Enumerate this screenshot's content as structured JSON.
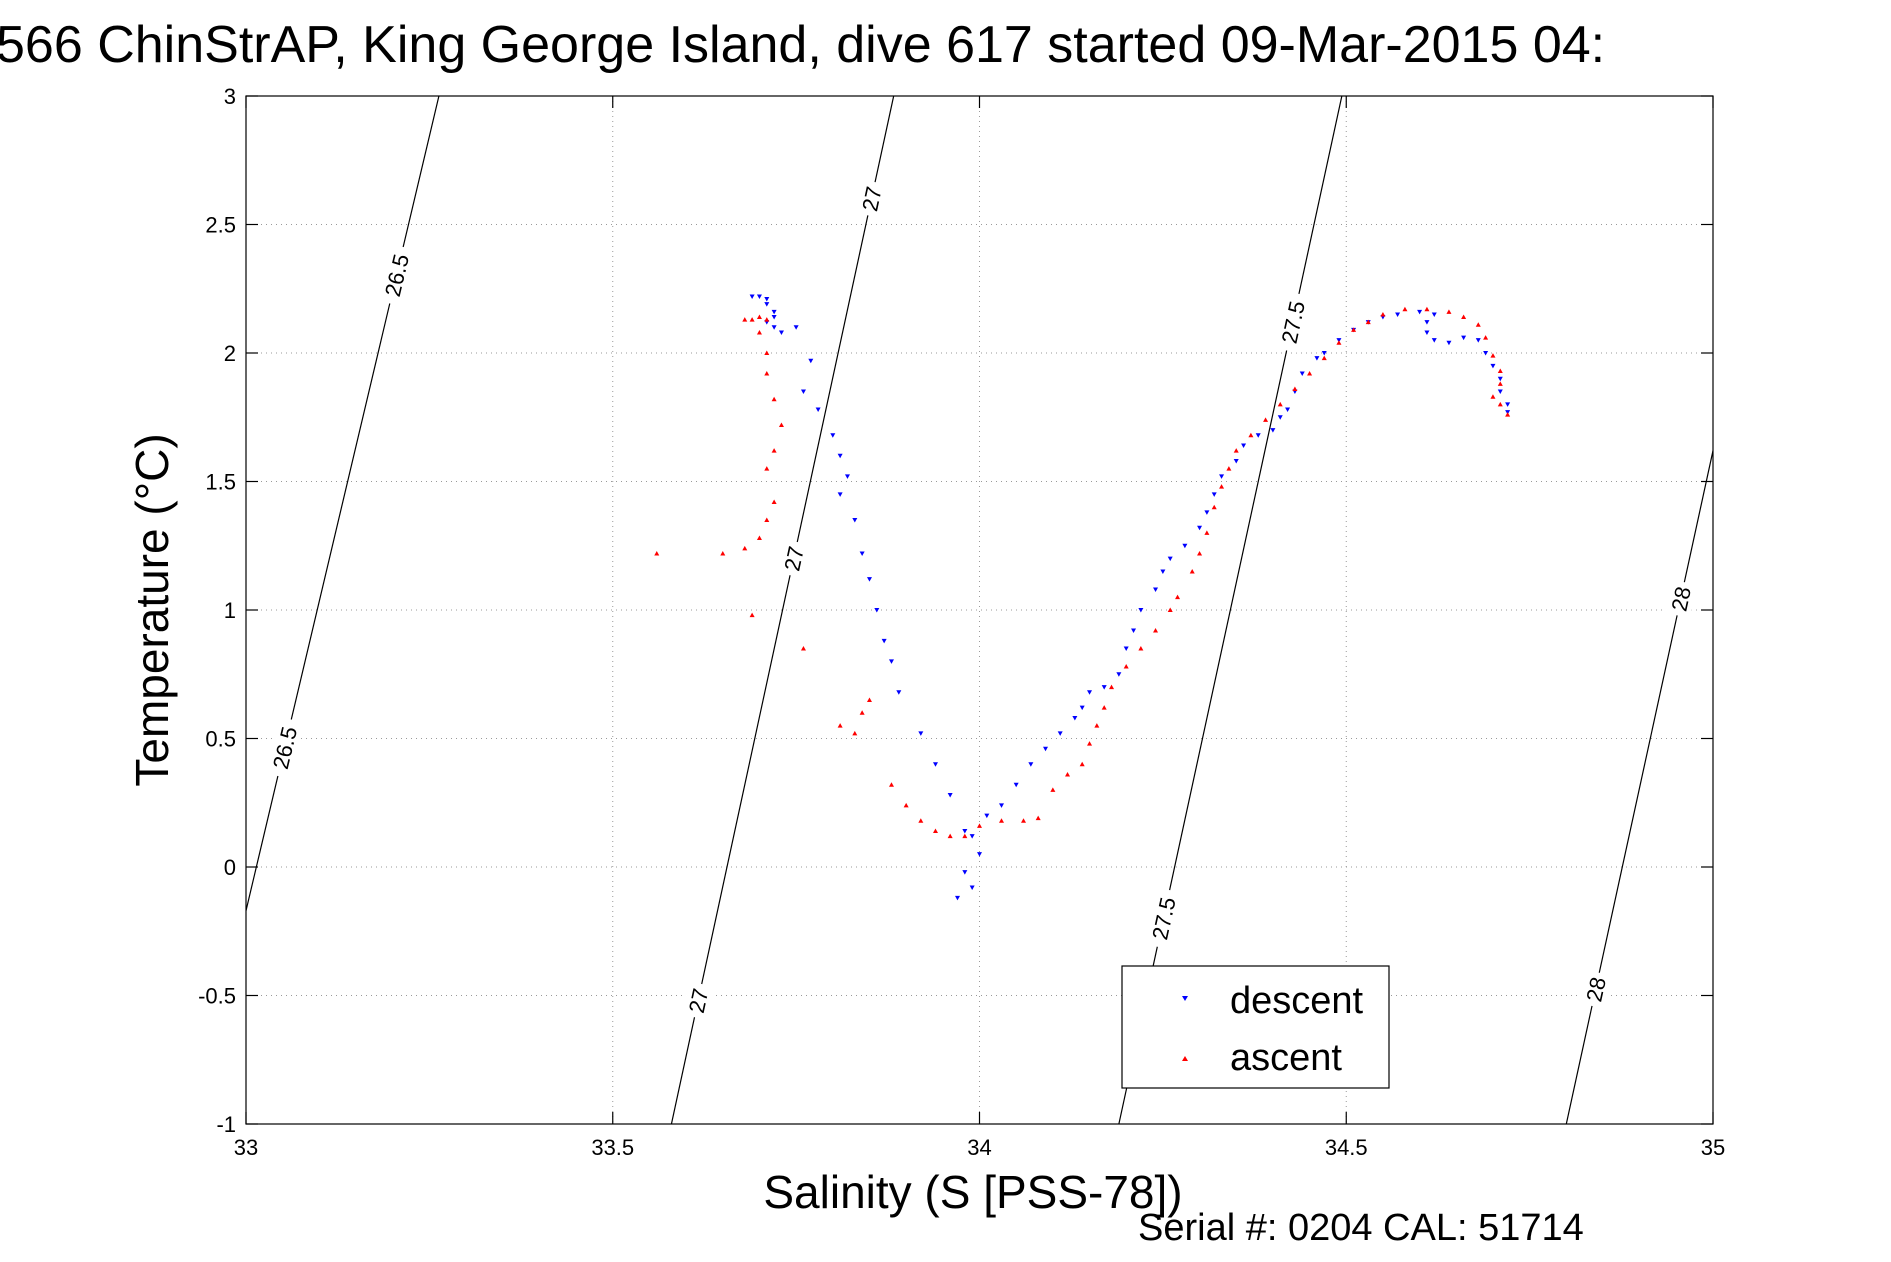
{
  "chart_data": {
    "type": "scatter",
    "title": "566 ChinStrAP, King George Island, dive 617 started 09-Mar-2015 04:",
    "xlabel": "Salinity (S [PSS-78])",
    "ylabel": "Temperature (°C)",
    "xlim": [
      33,
      35
    ],
    "ylim": [
      -1,
      3
    ],
    "x_ticks": [
      33,
      33.5,
      34,
      34.5,
      35
    ],
    "x_tick_labels": [
      "33",
      "33.5",
      "34",
      "34.5",
      "35"
    ],
    "y_ticks": [
      -1,
      -0.5,
      0,
      0.5,
      1,
      1.5,
      2,
      2.5,
      3
    ],
    "y_tick_labels": [
      "-1",
      "-0.5",
      "0",
      "0.5",
      "1",
      "1.5",
      "2",
      "2.5",
      "3"
    ],
    "grid": true,
    "legend_position": "bottom-right",
    "footer": "Serial #: 0204  CAL: 51714",
    "colors": {
      "descent": "#0000ff",
      "ascent": "#ff0000",
      "contour": "#000000"
    },
    "series": [
      {
        "name": "descent",
        "marker": "triangle-down",
        "color": "#0000ff",
        "points": [
          [
            33.69,
            2.22
          ],
          [
            33.7,
            2.22
          ],
          [
            33.71,
            2.21
          ],
          [
            33.71,
            2.19
          ],
          [
            33.72,
            2.16
          ],
          [
            33.72,
            2.14
          ],
          [
            33.71,
            2.12
          ],
          [
            33.72,
            2.1
          ],
          [
            33.73,
            2.08
          ],
          [
            33.75,
            2.1
          ],
          [
            33.77,
            1.97
          ],
          [
            33.76,
            1.85
          ],
          [
            33.78,
            1.78
          ],
          [
            33.8,
            1.68
          ],
          [
            33.81,
            1.6
          ],
          [
            33.82,
            1.52
          ],
          [
            33.81,
            1.45
          ],
          [
            33.83,
            1.35
          ],
          [
            33.84,
            1.22
          ],
          [
            33.85,
            1.12
          ],
          [
            33.86,
            1.0
          ],
          [
            33.87,
            0.88
          ],
          [
            33.88,
            0.8
          ],
          [
            33.89,
            0.68
          ],
          [
            33.92,
            0.52
          ],
          [
            33.94,
            0.4
          ],
          [
            33.96,
            0.28
          ],
          [
            33.98,
            0.14
          ],
          [
            33.99,
            0.12
          ],
          [
            34.0,
            0.05
          ],
          [
            33.98,
            -0.02
          ],
          [
            33.97,
            -0.12
          ],
          [
            33.99,
            -0.08
          ],
          [
            34.01,
            0.2
          ],
          [
            34.03,
            0.24
          ],
          [
            34.05,
            0.32
          ],
          [
            34.07,
            0.4
          ],
          [
            34.09,
            0.46
          ],
          [
            34.11,
            0.52
          ],
          [
            34.13,
            0.58
          ],
          [
            34.14,
            0.62
          ],
          [
            34.15,
            0.68
          ],
          [
            34.17,
            0.7
          ],
          [
            34.19,
            0.75
          ],
          [
            34.2,
            0.85
          ],
          [
            34.21,
            0.92
          ],
          [
            34.22,
            1.0
          ],
          [
            34.24,
            1.08
          ],
          [
            34.25,
            1.15
          ],
          [
            34.26,
            1.2
          ],
          [
            34.28,
            1.25
          ],
          [
            34.3,
            1.32
          ],
          [
            34.31,
            1.38
          ],
          [
            34.32,
            1.45
          ],
          [
            34.33,
            1.52
          ],
          [
            34.35,
            1.58
          ],
          [
            34.36,
            1.64
          ],
          [
            34.38,
            1.68
          ],
          [
            34.4,
            1.7
          ],
          [
            34.41,
            1.75
          ],
          [
            34.42,
            1.78
          ],
          [
            34.43,
            1.85
          ],
          [
            34.44,
            1.92
          ],
          [
            34.46,
            1.98
          ],
          [
            34.47,
            2.0
          ],
          [
            34.49,
            2.05
          ],
          [
            34.51,
            2.09
          ],
          [
            34.53,
            2.12
          ],
          [
            34.55,
            2.14
          ],
          [
            34.57,
            2.15
          ],
          [
            34.6,
            2.16
          ],
          [
            34.62,
            2.15
          ],
          [
            34.61,
            2.12
          ],
          [
            34.61,
            2.08
          ],
          [
            34.62,
            2.05
          ],
          [
            34.64,
            2.04
          ],
          [
            34.66,
            2.06
          ],
          [
            34.68,
            2.05
          ],
          [
            34.69,
            2.0
          ],
          [
            34.7,
            1.95
          ],
          [
            34.71,
            1.9
          ],
          [
            34.71,
            1.85
          ],
          [
            34.72,
            1.8
          ],
          [
            34.72,
            1.77
          ]
        ]
      },
      {
        "name": "ascent",
        "marker": "triangle-up",
        "color": "#ff0000",
        "points": [
          [
            33.56,
            1.22
          ],
          [
            33.65,
            1.22
          ],
          [
            33.68,
            1.24
          ],
          [
            33.69,
            0.98
          ],
          [
            33.7,
            1.28
          ],
          [
            33.71,
            1.35
          ],
          [
            33.72,
            1.42
          ],
          [
            33.71,
            1.55
          ],
          [
            33.72,
            1.62
          ],
          [
            33.73,
            1.72
          ],
          [
            33.72,
            1.82
          ],
          [
            33.71,
            1.92
          ],
          [
            33.71,
            2.0
          ],
          [
            33.7,
            2.08
          ],
          [
            33.69,
            2.13
          ],
          [
            33.68,
            2.13
          ],
          [
            33.7,
            2.14
          ],
          [
            33.71,
            2.13
          ],
          [
            33.76,
            0.85
          ],
          [
            33.81,
            0.55
          ],
          [
            33.83,
            0.52
          ],
          [
            33.84,
            0.6
          ],
          [
            33.85,
            0.65
          ],
          [
            33.88,
            0.32
          ],
          [
            33.9,
            0.24
          ],
          [
            33.92,
            0.18
          ],
          [
            33.94,
            0.14
          ],
          [
            33.96,
            0.12
          ],
          [
            33.98,
            0.12
          ],
          [
            34.0,
            0.16
          ],
          [
            34.03,
            0.18
          ],
          [
            34.06,
            0.18
          ],
          [
            34.08,
            0.19
          ],
          [
            34.1,
            0.3
          ],
          [
            34.12,
            0.36
          ],
          [
            34.14,
            0.4
          ],
          [
            34.15,
            0.48
          ],
          [
            34.16,
            0.55
          ],
          [
            34.17,
            0.62
          ],
          [
            34.18,
            0.7
          ],
          [
            34.2,
            0.78
          ],
          [
            34.22,
            0.85
          ],
          [
            34.24,
            0.92
          ],
          [
            34.26,
            1.0
          ],
          [
            34.27,
            1.05
          ],
          [
            34.29,
            1.15
          ],
          [
            34.3,
            1.22
          ],
          [
            34.31,
            1.3
          ],
          [
            34.32,
            1.4
          ],
          [
            34.33,
            1.48
          ],
          [
            34.34,
            1.55
          ],
          [
            34.35,
            1.62
          ],
          [
            34.37,
            1.68
          ],
          [
            34.39,
            1.74
          ],
          [
            34.41,
            1.8
          ],
          [
            34.43,
            1.86
          ],
          [
            34.45,
            1.92
          ],
          [
            34.47,
            1.98
          ],
          [
            34.49,
            2.04
          ],
          [
            34.51,
            2.09
          ],
          [
            34.53,
            2.12
          ],
          [
            34.55,
            2.15
          ],
          [
            34.58,
            2.17
          ],
          [
            34.61,
            2.17
          ],
          [
            34.64,
            2.16
          ],
          [
            34.66,
            2.14
          ],
          [
            34.68,
            2.11
          ],
          [
            34.69,
            2.06
          ],
          [
            34.7,
            1.99
          ],
          [
            34.71,
            1.93
          ],
          [
            34.71,
            1.88
          ],
          [
            34.7,
            1.83
          ],
          [
            34.71,
            1.8
          ],
          [
            34.72,
            1.76
          ]
        ]
      }
    ],
    "contours": [
      {
        "sigma": 26.5,
        "labels": [
          "26.5",
          "26.5"
        ],
        "line": [
          [
            33.0,
            -0.17
          ],
          [
            33.263,
            3.0
          ]
        ]
      },
      {
        "sigma": 27,
        "labels": [
          "27",
          "27",
          "27"
        ],
        "line": [
          [
            33.58,
            -1.0
          ],
          [
            33.883,
            3.0
          ]
        ]
      },
      {
        "sigma": 27.5,
        "labels": [
          "27.5",
          "27.5"
        ],
        "line": [
          [
            34.19,
            -1.0
          ],
          [
            34.494,
            3.0
          ]
        ]
      },
      {
        "sigma": 28,
        "labels": [
          "28",
          "28"
        ],
        "line": [
          [
            34.8,
            -1.0
          ],
          [
            35.0,
            1.62
          ]
        ]
      }
    ]
  }
}
